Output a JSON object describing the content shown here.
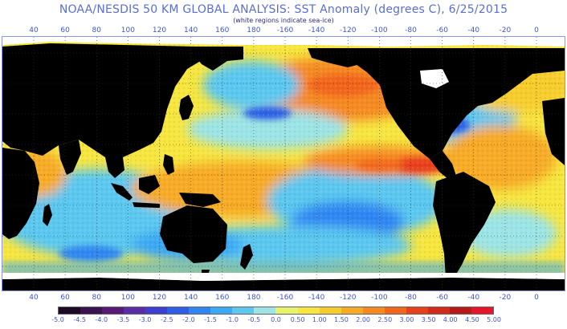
{
  "title": "NOAA/NESDIS 50 KM GLOBAL ANALYSIS: SST Anomaly (degrees C), 6/25/2015",
  "subtitle": "(white regions indicate sea-ice)",
  "longitude_labels": [
    "40",
    "60",
    "80",
    "100",
    "120",
    "140",
    "160",
    "180",
    "-160",
    "-140",
    "-120",
    "-100",
    "-80",
    "-60",
    "-40",
    "-20",
    "0"
  ],
  "scale": {
    "labels": [
      "-5.0",
      "-4.5",
      "-4.0",
      "-3.5",
      "-3.0",
      "-2.5",
      "-2.0",
      "-1.5",
      "-1.0",
      "-0.5",
      "0.0",
      "0.50",
      "1.00",
      "1.50",
      "2.00",
      "2.50",
      "3.00",
      "3.50",
      "4.00",
      "4.50",
      "5.00"
    ],
    "colors": [
      "#1c0a24",
      "#3a1250",
      "#5a1a78",
      "#5b2ea8",
      "#3c3fd0",
      "#2c5fe6",
      "#2f86f2",
      "#3aa8f4",
      "#5cc8f0",
      "#9ce4e6",
      "#e8f46a",
      "#f7e640",
      "#f7cd2e",
      "#f7ab25",
      "#f68a20",
      "#f2661c",
      "#e8401a",
      "#d42a1a",
      "#b81818",
      "#e8142a"
    ]
  },
  "map": {
    "land_color": "#000000",
    "sea_ice_color": "#ffffff",
    "ocean_colors": {
      "cold": "#2f86f2",
      "cool": "#5cc8f0",
      "neutral": "#9ce4e6",
      "mild": "#f7e640",
      "warm": "#f7ab25",
      "hot": "#f2661c",
      "very_hot": "#e8401a"
    }
  }
}
